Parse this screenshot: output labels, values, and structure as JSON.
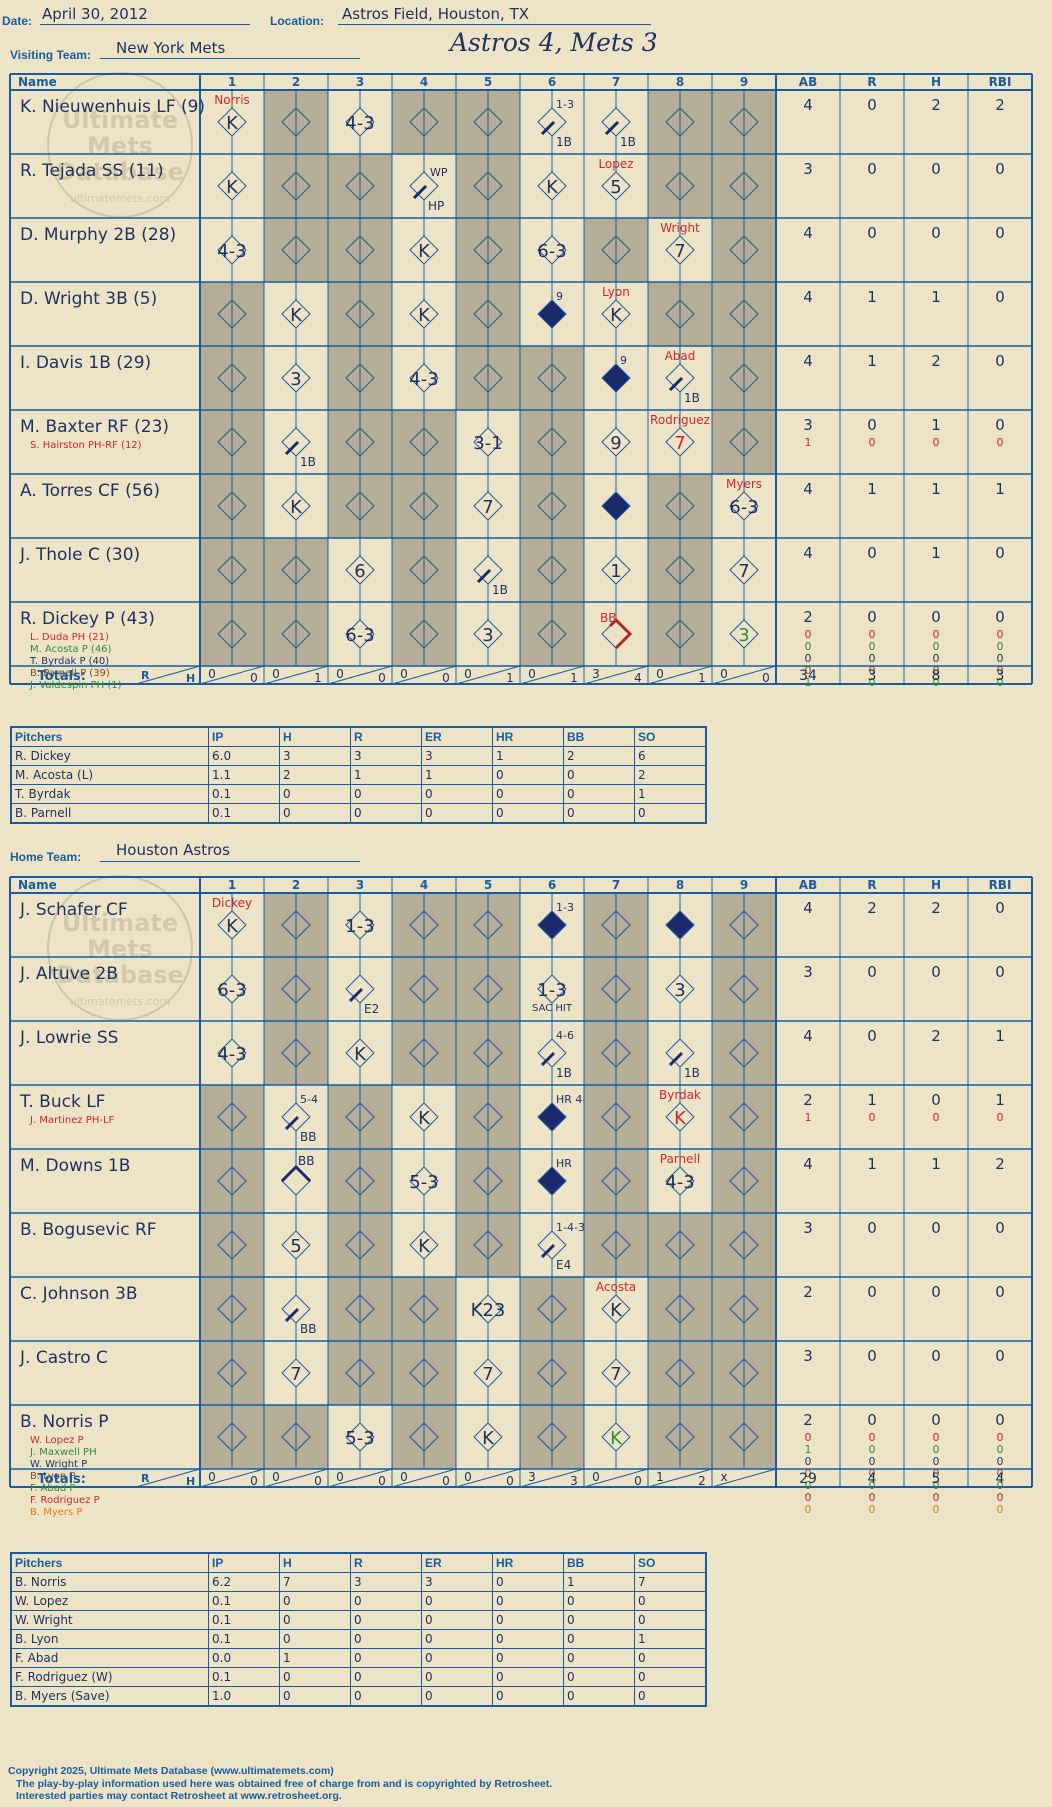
{
  "header": {
    "date_label": "Date:",
    "date": "April 30, 2012",
    "location_label": "Location:",
    "location": "Astros Field, Houston, TX",
    "visiting_label": "Visiting Team:",
    "visiting_team": "New York Mets",
    "home_label": "Home Team:",
    "home_team": "Houston Astros",
    "result": "Astros 4, Mets 3"
  },
  "colors": {
    "accent": "#1a5c9e",
    "ink": "#1f2f5e",
    "red": "#d3262b",
    "shade": "#b5ad96",
    "paper": "#ede4c8"
  },
  "columns": [
    "Name",
    "1",
    "2",
    "3",
    "4",
    "5",
    "6",
    "7",
    "8",
    "9",
    "AB",
    "R",
    "H",
    "RBI"
  ],
  "totals_label": "Totals:",
  "rh_labels": {
    "r": "R",
    "h": "H"
  },
  "watermark": {
    "l1": "Ultimate",
    "l2": "Mets",
    "l3": "Database",
    "l4": "ultimatemets.com"
  },
  "visitors": {
    "batters": [
      {
        "name": "K. Nieuwenhuis LF (9)",
        "subs": [],
        "stats": [
          [
            "4",
            "0",
            "2",
            "2"
          ]
        ]
      },
      {
        "name": "R. Tejada SS (11)",
        "subs": [],
        "stats": [
          [
            "3",
            "0",
            "0",
            "0"
          ]
        ]
      },
      {
        "name": "D. Murphy 2B (28)",
        "subs": [],
        "stats": [
          [
            "4",
            "0",
            "0",
            "0"
          ]
        ]
      },
      {
        "name": "D. Wright 3B (5)",
        "subs": [],
        "stats": [
          [
            "4",
            "1",
            "1",
            "0"
          ]
        ]
      },
      {
        "name": "I. Davis 1B (29)",
        "subs": [],
        "stats": [
          [
            "4",
            "1",
            "2",
            "0"
          ]
        ]
      },
      {
        "name": "M. Baxter RF (23)",
        "subs": [
          {
            "name": "S. Hairston PH-RF (12)",
            "color": "#d3262b"
          }
        ],
        "stats": [
          [
            "3",
            "0",
            "1",
            "0"
          ],
          [
            "1",
            "0",
            "0",
            "0"
          ]
        ]
      },
      {
        "name": "A. Torres CF (56)",
        "subs": [],
        "stats": [
          [
            "4",
            "1",
            "1",
            "1"
          ]
        ]
      },
      {
        "name": "J. Thole C (30)",
        "subs": [],
        "stats": [
          [
            "4",
            "0",
            "1",
            "0"
          ]
        ]
      },
      {
        "name": "R. Dickey P (43)",
        "subs": [
          {
            "name": "L. Duda PH (21)",
            "color": "#d3262b"
          },
          {
            "name": "M. Acosta P (46)",
            "color": "#2e8b3a"
          },
          {
            "name": "T. Byrdak P (40)",
            "color": "#1f2f5e"
          },
          {
            "name": "B. Parnell P (39)",
            "color": "#8a4a1a"
          },
          {
            "name": "J. Valdespin PH (1)",
            "color": "#2e8b3a"
          }
        ],
        "stats": [
          [
            "2",
            "0",
            "0",
            "0"
          ],
          [
            "0",
            "0",
            "0",
            "0"
          ],
          [
            "0",
            "0",
            "0",
            "0"
          ],
          [
            "0",
            "0",
            "0",
            "0"
          ],
          [
            "0",
            "0",
            "0",
            "0"
          ],
          [
            "1",
            "0",
            "0",
            "0"
          ]
        ]
      }
    ],
    "cells": [
      [
        {
          "t": "K",
          "n": "Norris"
        },
        {},
        {
          "t": "4-3"
        },
        {},
        {},
        {
          "b": "1B",
          "c": "1-3"
        },
        {
          "b": "1B",
          "d": 1
        },
        {},
        {}
      ],
      [
        {
          "t": "K"
        },
        {},
        {},
        {
          "b": "HP",
          "w": "WP"
        },
        {},
        {
          "t": "K"
        },
        {
          "t": "5",
          "n": "Lopez"
        },
        {},
        {}
      ],
      [
        {
          "t": "4-3"
        },
        {},
        {},
        {
          "t": "K"
        },
        {},
        {
          "t": "6-3"
        },
        {},
        {
          "t": "7",
          "n": "Wright"
        },
        {}
      ],
      [
        {},
        {
          "t": "K"
        },
        {},
        {
          "t": "K"
        },
        {},
        {
          "s": 1,
          "c": "9"
        },
        {
          "t": "K",
          "n": "Lyon"
        },
        {},
        {}
      ],
      [
        {},
        {
          "t": "3"
        },
        {},
        {
          "t": "4-3"
        },
        {},
        {},
        {
          "s": 1,
          "c": "9"
        },
        {
          "b": "1B",
          "n": "Abad"
        },
        {}
      ],
      [
        {},
        {
          "b": "1B"
        },
        {},
        {},
        {
          "t": "3-1"
        },
        {},
        {
          "t": "9"
        },
        {
          "t": "7",
          "n": "Rodriguez",
          "r": 1
        },
        {}
      ],
      [
        {},
        {
          "t": "K"
        },
        {},
        {},
        {
          "t": "7"
        },
        {},
        {
          "s": 1
        },
        {},
        {
          "t": "6-3",
          "n": "Myers"
        }
      ],
      [
        {},
        {},
        {
          "t": "6"
        },
        {},
        {
          "b": "1B"
        },
        {},
        {
          "t": "1"
        },
        {},
        {
          "t": "7"
        }
      ],
      [
        {},
        {},
        {
          "t": "6-3"
        },
        {},
        {
          "t": "3"
        },
        {},
        {
          "bb": 1
        },
        {},
        {
          "t": "3",
          "g": 1
        }
      ]
    ],
    "inning_totals": [
      [
        "0",
        "0"
      ],
      [
        "0",
        "1"
      ],
      [
        "0",
        "0"
      ],
      [
        "0",
        "0"
      ],
      [
        "0",
        "1"
      ],
      [
        "0",
        "1"
      ],
      [
        "3",
        "4"
      ],
      [
        "0",
        "1"
      ],
      [
        "0",
        "0"
      ]
    ],
    "totals": [
      "34",
      "3",
      "8",
      "3"
    ],
    "pitchers_header": [
      "Pitchers",
      "IP",
      "H",
      "R",
      "ER",
      "HR",
      "BB",
      "SO"
    ],
    "pitchers": [
      [
        "R. Dickey",
        "6.0",
        "3",
        "3",
        "3",
        "1",
        "2",
        "6"
      ],
      [
        "M. Acosta (L)",
        "1.1",
        "2",
        "1",
        "1",
        "0",
        "0",
        "2"
      ],
      [
        "T. Byrdak",
        "0.1",
        "0",
        "0",
        "0",
        "0",
        "0",
        "1"
      ],
      [
        "B. Parnell",
        "0.1",
        "0",
        "0",
        "0",
        "0",
        "0",
        "0"
      ]
    ]
  },
  "home": {
    "batters": [
      {
        "name": "J. Schafer CF",
        "subs": [],
        "stats": [
          [
            "4",
            "2",
            "2",
            "0"
          ]
        ]
      },
      {
        "name": "J. Altuve 2B",
        "subs": [],
        "stats": [
          [
            "3",
            "0",
            "0",
            "0"
          ]
        ]
      },
      {
        "name": "J. Lowrie SS",
        "subs": [],
        "stats": [
          [
            "4",
            "0",
            "2",
            "1"
          ]
        ]
      },
      {
        "name": "T. Buck LF",
        "subs": [
          {
            "name": "J. Martinez PH-LF",
            "color": "#d3262b"
          }
        ],
        "stats": [
          [
            "2",
            "1",
            "0",
            "1"
          ],
          [
            "1",
            "0",
            "0",
            "0"
          ]
        ]
      },
      {
        "name": "M. Downs 1B",
        "subs": [],
        "stats": [
          [
            "4",
            "1",
            "1",
            "2"
          ]
        ]
      },
      {
        "name": "B. Bogusevic RF",
        "subs": [],
        "stats": [
          [
            "3",
            "0",
            "0",
            "0"
          ]
        ]
      },
      {
        "name": "C. Johnson 3B",
        "subs": [],
        "stats": [
          [
            "2",
            "0",
            "0",
            "0"
          ]
        ]
      },
      {
        "name": "J. Castro C",
        "subs": [],
        "stats": [
          [
            "3",
            "0",
            "0",
            "0"
          ]
        ]
      },
      {
        "name": "B. Norris P",
        "subs": [
          {
            "name": "W. Lopez P",
            "color": "#d3262b"
          },
          {
            "name": "J. Maxwell PH",
            "color": "#2e8b3a"
          },
          {
            "name": "W. Wright P",
            "color": "#1f2f5e"
          },
          {
            "name": "B. Lyon P",
            "color": "#8a4a1a"
          },
          {
            "name": "F. Abad P",
            "color": "#2e8b3a"
          },
          {
            "name": "F. Rodriguez P",
            "color": "#d3262b"
          },
          {
            "name": "B. Myers P",
            "color": "#e07a20"
          }
        ],
        "stats": [
          [
            "2",
            "0",
            "0",
            "0"
          ],
          [
            "0",
            "0",
            "0",
            "0"
          ],
          [
            "1",
            "0",
            "0",
            "0"
          ],
          [
            "0",
            "0",
            "0",
            "0"
          ],
          [
            "0",
            "0",
            "0",
            "0"
          ],
          [
            "0",
            "0",
            "0",
            "0"
          ],
          [
            "0",
            "0",
            "0",
            "0"
          ],
          [
            "0",
            "0",
            "0",
            "0"
          ]
        ]
      }
    ],
    "cells": [
      [
        {
          "t": "K",
          "n": "Dickey"
        },
        {},
        {
          "t": "1-3"
        },
        {},
        {},
        {
          "s": 1,
          "c": "1-3"
        },
        {},
        {
          "s": 1
        },
        {}
      ],
      [
        {
          "t": "6-3"
        },
        {},
        {
          "b": "E2"
        },
        {},
        {},
        {
          "t": "1-3",
          "sub": "SAC HIT"
        },
        {},
        {
          "t": "3"
        },
        {}
      ],
      [
        {
          "t": "4-3"
        },
        {},
        {
          "t": "K"
        },
        {},
        {},
        {
          "b": "1B",
          "c": "4-6"
        },
        {},
        {
          "b": "1B"
        },
        {}
      ],
      [
        {},
        {
          "b": "BB",
          "c": "5-4"
        },
        {},
        {
          "t": "K"
        },
        {},
        {
          "s": 1,
          "c": "HR 4-6"
        },
        {},
        {
          "t": "K",
          "n": "Byrdak",
          "r": 1
        },
        {}
      ],
      [
        {},
        {
          "bb2": 1
        },
        {},
        {
          "t": "5-3"
        },
        {},
        {
          "s": 1,
          "c": "HR"
        },
        {},
        {
          "t": "4-3",
          "n": "Parnell"
        },
        {}
      ],
      [
        {},
        {
          "t": "5"
        },
        {},
        {
          "t": "K"
        },
        {},
        {
          "b": "E4",
          "c": "1-4-3"
        },
        {},
        {},
        {}
      ],
      [
        {},
        {
          "b": "BB"
        },
        {},
        {},
        {
          "t": "K23"
        },
        {},
        {
          "t": "K",
          "n": "Acosta"
        },
        {},
        {}
      ],
      [
        {},
        {
          "t": "7"
        },
        {},
        {},
        {
          "t": "7"
        },
        {},
        {
          "t": "7"
        },
        {},
        {}
      ],
      [
        {},
        {},
        {
          "t": "5-3"
        },
        {},
        {
          "t": "K"
        },
        {},
        {
          "t": "K",
          "g": 1
        },
        {},
        {}
      ]
    ],
    "inning_totals": [
      [
        "0",
        "0"
      ],
      [
        "0",
        "0"
      ],
      [
        "0",
        "0"
      ],
      [
        "0",
        "0"
      ],
      [
        "0",
        "0"
      ],
      [
        "3",
        "3"
      ],
      [
        "0",
        "0"
      ],
      [
        "1",
        "2"
      ],
      [
        "x",
        ""
      ]
    ],
    "totals": [
      "29",
      "4",
      "5",
      "4"
    ],
    "pitchers_header": [
      "Pitchers",
      "IP",
      "H",
      "R",
      "ER",
      "HR",
      "BB",
      "SO"
    ],
    "pitchers": [
      [
        "B. Norris",
        "6.2",
        "7",
        "3",
        "3",
        "0",
        "1",
        "7"
      ],
      [
        "W. Lopez",
        "0.1",
        "0",
        "0",
        "0",
        "0",
        "0",
        "0"
      ],
      [
        "W. Wright",
        "0.1",
        "0",
        "0",
        "0",
        "0",
        "0",
        "0"
      ],
      [
        "B. Lyon",
        "0.1",
        "0",
        "0",
        "0",
        "0",
        "0",
        "1"
      ],
      [
        "F. Abad",
        "0.0",
        "1",
        "0",
        "0",
        "0",
        "0",
        "0"
      ],
      [
        "F. Rodriguez (W)",
        "0.1",
        "0",
        "0",
        "0",
        "0",
        "0",
        "0"
      ],
      [
        "B. Myers (Save)",
        "1.0",
        "0",
        "0",
        "0",
        "0",
        "0",
        "0"
      ]
    ]
  },
  "footer": {
    "copyright": "Copyright 2025, Ultimate Mets Database (www.ultimatemets.com)",
    "line2": "The play-by-play information used here was obtained free of charge from and is copyrighted by Retrosheet.",
    "line3": "Interested parties may contact Retrosheet at www.retrosheet.org."
  }
}
